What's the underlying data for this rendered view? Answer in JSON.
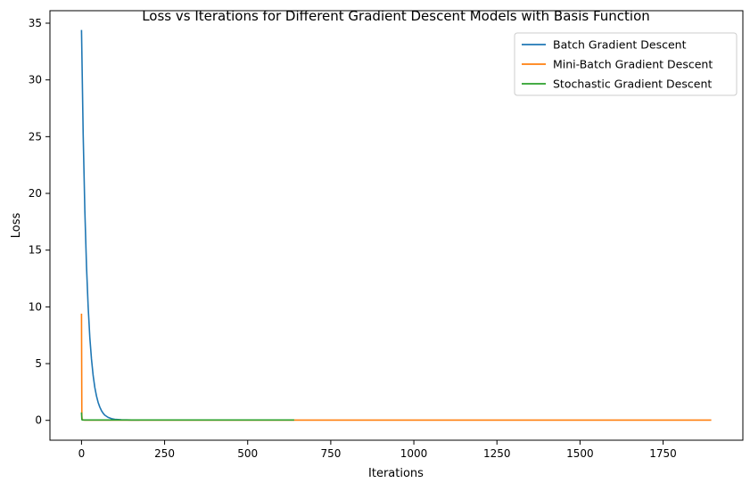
{
  "chart_data": {
    "type": "line",
    "title": "Loss vs Iterations for Different Gradient Descent Models with Basis Function",
    "xlabel": "Iterations",
    "ylabel": "Loss",
    "xlim": [
      -95,
      1990
    ],
    "ylim": [
      -1.75,
      36.1
    ],
    "xticks": [
      0,
      250,
      500,
      750,
      1000,
      1250,
      1500,
      1750
    ],
    "xtick_labels": [
      "0",
      "250",
      "500",
      "750",
      "1000",
      "1250",
      "1500",
      "1750"
    ],
    "yticks": [
      0,
      5,
      10,
      15,
      20,
      25,
      30,
      35
    ],
    "ytick_labels": [
      "0",
      "5",
      "10",
      "15",
      "20",
      "25",
      "30",
      "35"
    ],
    "grid": false,
    "legend_position": "top-right",
    "series": [
      {
        "name": "Batch Gradient Descent",
        "color": "#1f77b4",
        "points": [
          [
            0,
            34.4
          ],
          [
            5,
            25.2
          ],
          [
            10,
            18.5
          ],
          [
            15,
            13.6
          ],
          [
            20,
            10.0
          ],
          [
            25,
            7.3
          ],
          [
            30,
            5.4
          ],
          [
            35,
            3.95
          ],
          [
            40,
            2.9
          ],
          [
            45,
            2.15
          ],
          [
            50,
            1.58
          ],
          [
            55,
            1.17
          ],
          [
            60,
            0.86
          ],
          [
            65,
            0.63
          ],
          [
            70,
            0.46
          ],
          [
            80,
            0.26
          ],
          [
            90,
            0.15
          ],
          [
            100,
            0.09
          ],
          [
            120,
            0.05
          ],
          [
            150,
            0.03
          ],
          [
            175,
            0.03
          ]
        ]
      },
      {
        "name": "Mini-Batch Gradient Descent",
        "color": "#ff7f0e",
        "points": [
          [
            0,
            9.4
          ],
          [
            1,
            0.4
          ],
          [
            2,
            0.05
          ],
          [
            10,
            0.02
          ],
          [
            100,
            0.02
          ],
          [
            500,
            0.02
          ],
          [
            1000,
            0.02
          ],
          [
            1500,
            0.02
          ],
          [
            1895,
            0.02
          ]
        ]
      },
      {
        "name": "Stochastic Gradient Descent",
        "color": "#2ca02c",
        "points": [
          [
            0,
            0.7
          ],
          [
            1,
            0.1
          ],
          [
            2,
            0.03
          ],
          [
            50,
            0.03
          ],
          [
            200,
            0.03
          ],
          [
            400,
            0.03
          ],
          [
            640,
            0.03
          ]
        ]
      }
    ]
  }
}
